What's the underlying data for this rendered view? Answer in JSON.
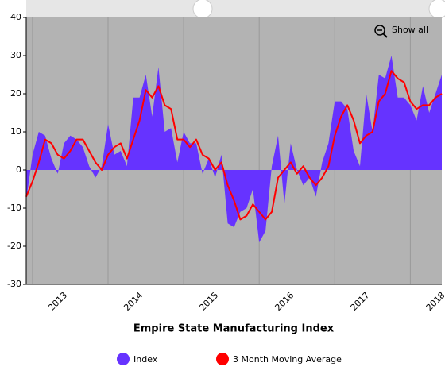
{
  "chart_data": {
    "type": "area_line",
    "x_axis_title": "Empire State Manufacturing Index",
    "button": "Show all",
    "categories": [
      null,
      "2013",
      null,
      null,
      null,
      null,
      null,
      null,
      null,
      null,
      null,
      null,
      null,
      "2014",
      null,
      null,
      null,
      null,
      null,
      null,
      null,
      null,
      null,
      null,
      null,
      "2015",
      null,
      null,
      null,
      null,
      null,
      null,
      null,
      null,
      null,
      null,
      null,
      "2016",
      null,
      null,
      null,
      null,
      null,
      null,
      null,
      null,
      null,
      null,
      null,
      "2017",
      null,
      null,
      null,
      null,
      null,
      null,
      null,
      null,
      null,
      null,
      null,
      "2018",
      null,
      null,
      null,
      null,
      null
    ],
    "series": [
      {
        "name": "Index",
        "color": "#6633ff",
        "values": [
          -8,
          4,
          10,
          9,
          3,
          -1,
          7,
          9,
          8,
          6,
          1,
          -2,
          1,
          12,
          4,
          5,
          1,
          19,
          19,
          25,
          14,
          27,
          10,
          11,
          2,
          10,
          7,
          7,
          -1,
          3,
          -2,
          4,
          -14,
          -15,
          -11,
          -10,
          -5,
          -19,
          -16,
          1,
          9,
          -9,
          7,
          0,
          -4,
          -2,
          -7,
          2,
          7,
          18,
          18,
          16,
          5,
          1,
          20,
          10,
          25,
          24,
          30,
          19,
          19,
          17,
          13,
          22,
          15,
          20,
          25
        ]
      },
      {
        "name": "3 Month Moving Average",
        "color": "#ff0000",
        "values": [
          -7,
          -3,
          2,
          8,
          7,
          4,
          3,
          5,
          8,
          8,
          5,
          2,
          0,
          4,
          6,
          7,
          3,
          8,
          13,
          21,
          19,
          22,
          17,
          16,
          8,
          8,
          6,
          8,
          4,
          3,
          0,
          2,
          -4,
          -8,
          -13,
          -12,
          -9,
          -11,
          -13,
          -11,
          -2,
          0,
          2,
          -1,
          1,
          -2,
          -4,
          -2,
          1,
          9,
          14,
          17,
          13,
          7,
          9,
          10,
          18,
          20,
          26,
          24,
          23,
          18,
          16,
          17,
          17,
          19,
          20
        ]
      }
    ],
    "ylim": [
      -30,
      40
    ],
    "yticks": [
      -30,
      -20,
      -10,
      0,
      10,
      20,
      30,
      40
    ]
  }
}
